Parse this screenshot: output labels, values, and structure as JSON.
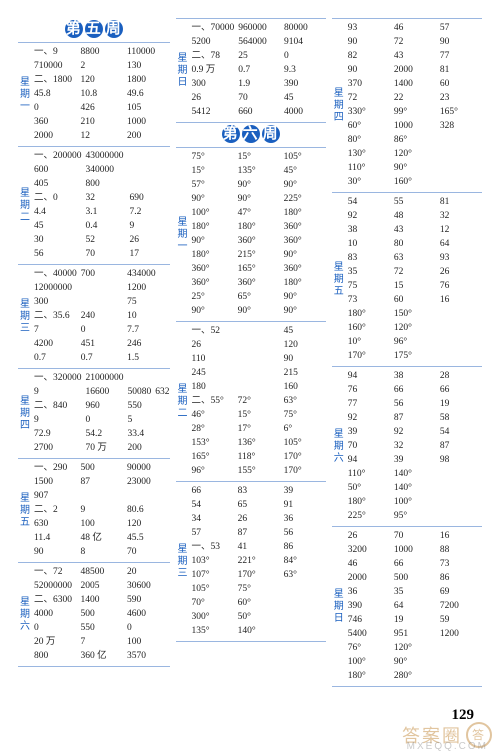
{
  "page_number": "129",
  "watermark_text": "答案圈",
  "watermark_sub": "MXEQQ.COM",
  "headings": {
    "week5": "第五周",
    "week6": "第六周"
  },
  "col1": [
    {
      "day": "星期一",
      "rows": [
        [
          "一、9",
          "8800",
          "110000"
        ],
        [
          "710000",
          "2",
          "130"
        ],
        [
          "二、1800",
          "120",
          "1800"
        ],
        [
          "45.8",
          "10.8",
          "49.6"
        ],
        [
          "0",
          "426",
          "105"
        ],
        [
          "360",
          "210",
          "1000"
        ],
        [
          "2000",
          "12",
          "200"
        ]
      ]
    },
    {
      "day": "星期二",
      "rows": [
        [
          "一、200000",
          "43000000",
          ""
        ],
        [
          "600",
          "340000",
          ""
        ],
        [
          "405",
          "800",
          ""
        ],
        [
          "二、0",
          "32",
          "690"
        ],
        [
          "4.4",
          "3.1",
          "7.2"
        ],
        [
          "45",
          "0.4",
          "9"
        ],
        [
          "30",
          "52",
          "26"
        ],
        [
          "56",
          "70",
          "17"
        ]
      ]
    },
    {
      "day": "星期三",
      "rows": [
        [
          "一、40000",
          "700",
          "434000"
        ],
        [
          "12000000",
          "",
          "1200"
        ],
        [
          "300",
          "",
          "75"
        ],
        [
          "二、35.6",
          "240",
          "10"
        ],
        [
          "7",
          "0",
          "7.7"
        ],
        [
          "4200",
          "451",
          "246"
        ],
        [
          "0.7",
          "0.7",
          "1.5"
        ]
      ]
    },
    {
      "day": "星期四",
      "rows": [
        [
          "一、320000",
          "21000000",
          ""
        ],
        [
          "9",
          "16600",
          "50080",
          "632"
        ],
        [
          "二、840",
          "960",
          "550"
        ],
        [
          "9",
          "0",
          "5"
        ],
        [
          "72.9",
          "54.2",
          "33.4"
        ],
        [
          "2700",
          "70 万",
          "200"
        ]
      ]
    },
    {
      "day": "星期五",
      "rows": [
        [
          "一、290",
          "500",
          "90000"
        ],
        [
          "1500",
          "87",
          "23000"
        ],
        [
          "907",
          "",
          ""
        ],
        [
          "二、2",
          "9",
          "80.6"
        ],
        [
          "630",
          "100",
          "120"
        ],
        [
          "11.4",
          "48 亿",
          "45.5"
        ],
        [
          "90",
          "8",
          "70"
        ]
      ]
    },
    {
      "day": "星期六",
      "rows": [
        [
          "一、72",
          "48500",
          "20"
        ],
        [
          "52000000",
          "2005",
          "30600"
        ],
        [
          "二、6300",
          "1400",
          "590"
        ],
        [
          "4000",
          "500",
          "4600"
        ],
        [
          "0",
          "550",
          "0"
        ],
        [
          "20 万",
          "7",
          "100"
        ],
        [
          "800",
          "360 亿",
          "3570"
        ]
      ]
    }
  ],
  "col2": [
    {
      "day": "星期日",
      "rows": [
        [
          "一、70000",
          "960000",
          "80000"
        ],
        [
          "5200",
          "564000",
          "9104"
        ],
        [
          "二、78",
          "25",
          "0"
        ],
        [
          "0.9 万",
          "0.7",
          "9.3"
        ],
        [
          "300",
          "1.9",
          "390"
        ],
        [
          "26",
          "70",
          "45"
        ],
        [
          "5412",
          "660",
          "4000"
        ]
      ]
    },
    {
      "day": "星期一",
      "rows": [
        [
          "75°",
          "15°",
          "105°"
        ],
        [
          "15°",
          "135°",
          "45°"
        ],
        [
          "57°",
          "90°",
          "90°"
        ],
        [
          "90°",
          "90°",
          "225°"
        ],
        [
          "100°",
          "47°",
          "180°"
        ],
        [
          "180°",
          "180°",
          "360°"
        ],
        [
          "90°",
          "360°",
          "360°"
        ],
        [
          "180°",
          "215°",
          "90°"
        ],
        [
          "360°",
          "165°",
          "360°"
        ],
        [
          "360°",
          "360°",
          "180°"
        ],
        [
          "25°",
          "65°",
          "90°"
        ],
        [
          "90°",
          "90°",
          "90°"
        ]
      ]
    },
    {
      "day": "星期二",
      "rows": [
        [
          "一、52",
          "",
          "45"
        ],
        [
          "26",
          "",
          "120"
        ],
        [
          "110",
          "",
          "90"
        ],
        [
          "245",
          "",
          "215"
        ],
        [
          "180",
          "",
          "160"
        ],
        [
          "二、55°",
          "72°",
          "63°"
        ],
        [
          "46°",
          "15°",
          "75°"
        ],
        [
          "28°",
          "17°",
          "6°"
        ],
        [
          "153°",
          "136°",
          "105°"
        ],
        [
          "165°",
          "118°",
          "170°"
        ],
        [
          "96°",
          "155°",
          "170°"
        ]
      ]
    },
    {
      "day": "星期三",
      "rows": [
        [
          "66",
          "83",
          "39"
        ],
        [
          "54",
          "65",
          "91"
        ],
        [
          "34",
          "26",
          "36"
        ],
        [
          "57",
          "87",
          "56"
        ],
        [
          "一、53",
          "41",
          "86"
        ],
        [
          "103°",
          "221°",
          "84°"
        ],
        [
          "107°",
          "170°",
          "63°"
        ],
        [
          "105°",
          "75°",
          ""
        ],
        [
          "70°",
          "60°",
          ""
        ],
        [
          "300°",
          "50°",
          ""
        ],
        [
          "135°",
          "140°",
          ""
        ]
      ]
    }
  ],
  "col3": [
    {
      "day": "星期四",
      "rows": [
        [
          "93",
          "46",
          "57"
        ],
        [
          "90",
          "72",
          "90"
        ],
        [
          "82",
          "43",
          "77"
        ],
        [
          "90",
          "2000",
          "81"
        ],
        [
          "370",
          "1400",
          "60"
        ],
        [
          "72",
          "22",
          "23"
        ],
        [
          "330°",
          "99°",
          "165°"
        ],
        [
          "60°",
          "1000",
          "328"
        ],
        [
          "80°",
          "86°",
          ""
        ],
        [
          "130°",
          "120°",
          ""
        ],
        [
          "110°",
          "90°",
          ""
        ],
        [
          "30°",
          "160°",
          ""
        ]
      ]
    },
    {
      "day": "星期五",
      "rows": [
        [
          "54",
          "55",
          "81"
        ],
        [
          "92",
          "48",
          "32"
        ],
        [
          "38",
          "43",
          "12"
        ],
        [
          "10",
          "80",
          "64"
        ],
        [
          "83",
          "63",
          "93"
        ],
        [
          "35",
          "72",
          "26"
        ],
        [
          "75",
          "15",
          "76"
        ],
        [
          "73",
          "60",
          "16"
        ],
        [
          "180°",
          "150°",
          ""
        ],
        [
          "160°",
          "120°",
          ""
        ],
        [
          "10°",
          "96°",
          ""
        ],
        [
          "170°",
          "175°",
          ""
        ]
      ]
    },
    {
      "day": "星期六",
      "rows": [
        [
          "94",
          "38",
          "28"
        ],
        [
          "76",
          "66",
          "66"
        ],
        [
          "77",
          "56",
          "19"
        ],
        [
          "92",
          "87",
          "58"
        ],
        [
          "39",
          "92",
          "54"
        ],
        [
          "70",
          "32",
          "87"
        ],
        [
          "94",
          "39",
          "98"
        ],
        [
          "110°",
          "140°",
          ""
        ],
        [
          "50°",
          "140°",
          ""
        ],
        [
          "180°",
          "100°",
          ""
        ],
        [
          "225°",
          "95°",
          ""
        ]
      ]
    },
    {
      "day": "星期日",
      "rows": [
        [
          "26",
          "70",
          "16"
        ],
        [
          "3200",
          "1000",
          "88"
        ],
        [
          "46",
          "66",
          "73"
        ],
        [
          "2000",
          "500",
          "86"
        ],
        [
          "36",
          "35",
          "69"
        ],
        [
          "390",
          "64",
          "7200"
        ],
        [
          "746",
          "19",
          "59"
        ],
        [
          "5400",
          "951",
          "1200"
        ],
        [
          "76°",
          "120°",
          ""
        ],
        [
          "100°",
          "90°",
          ""
        ],
        [
          "180°",
          "280°",
          ""
        ]
      ]
    }
  ]
}
